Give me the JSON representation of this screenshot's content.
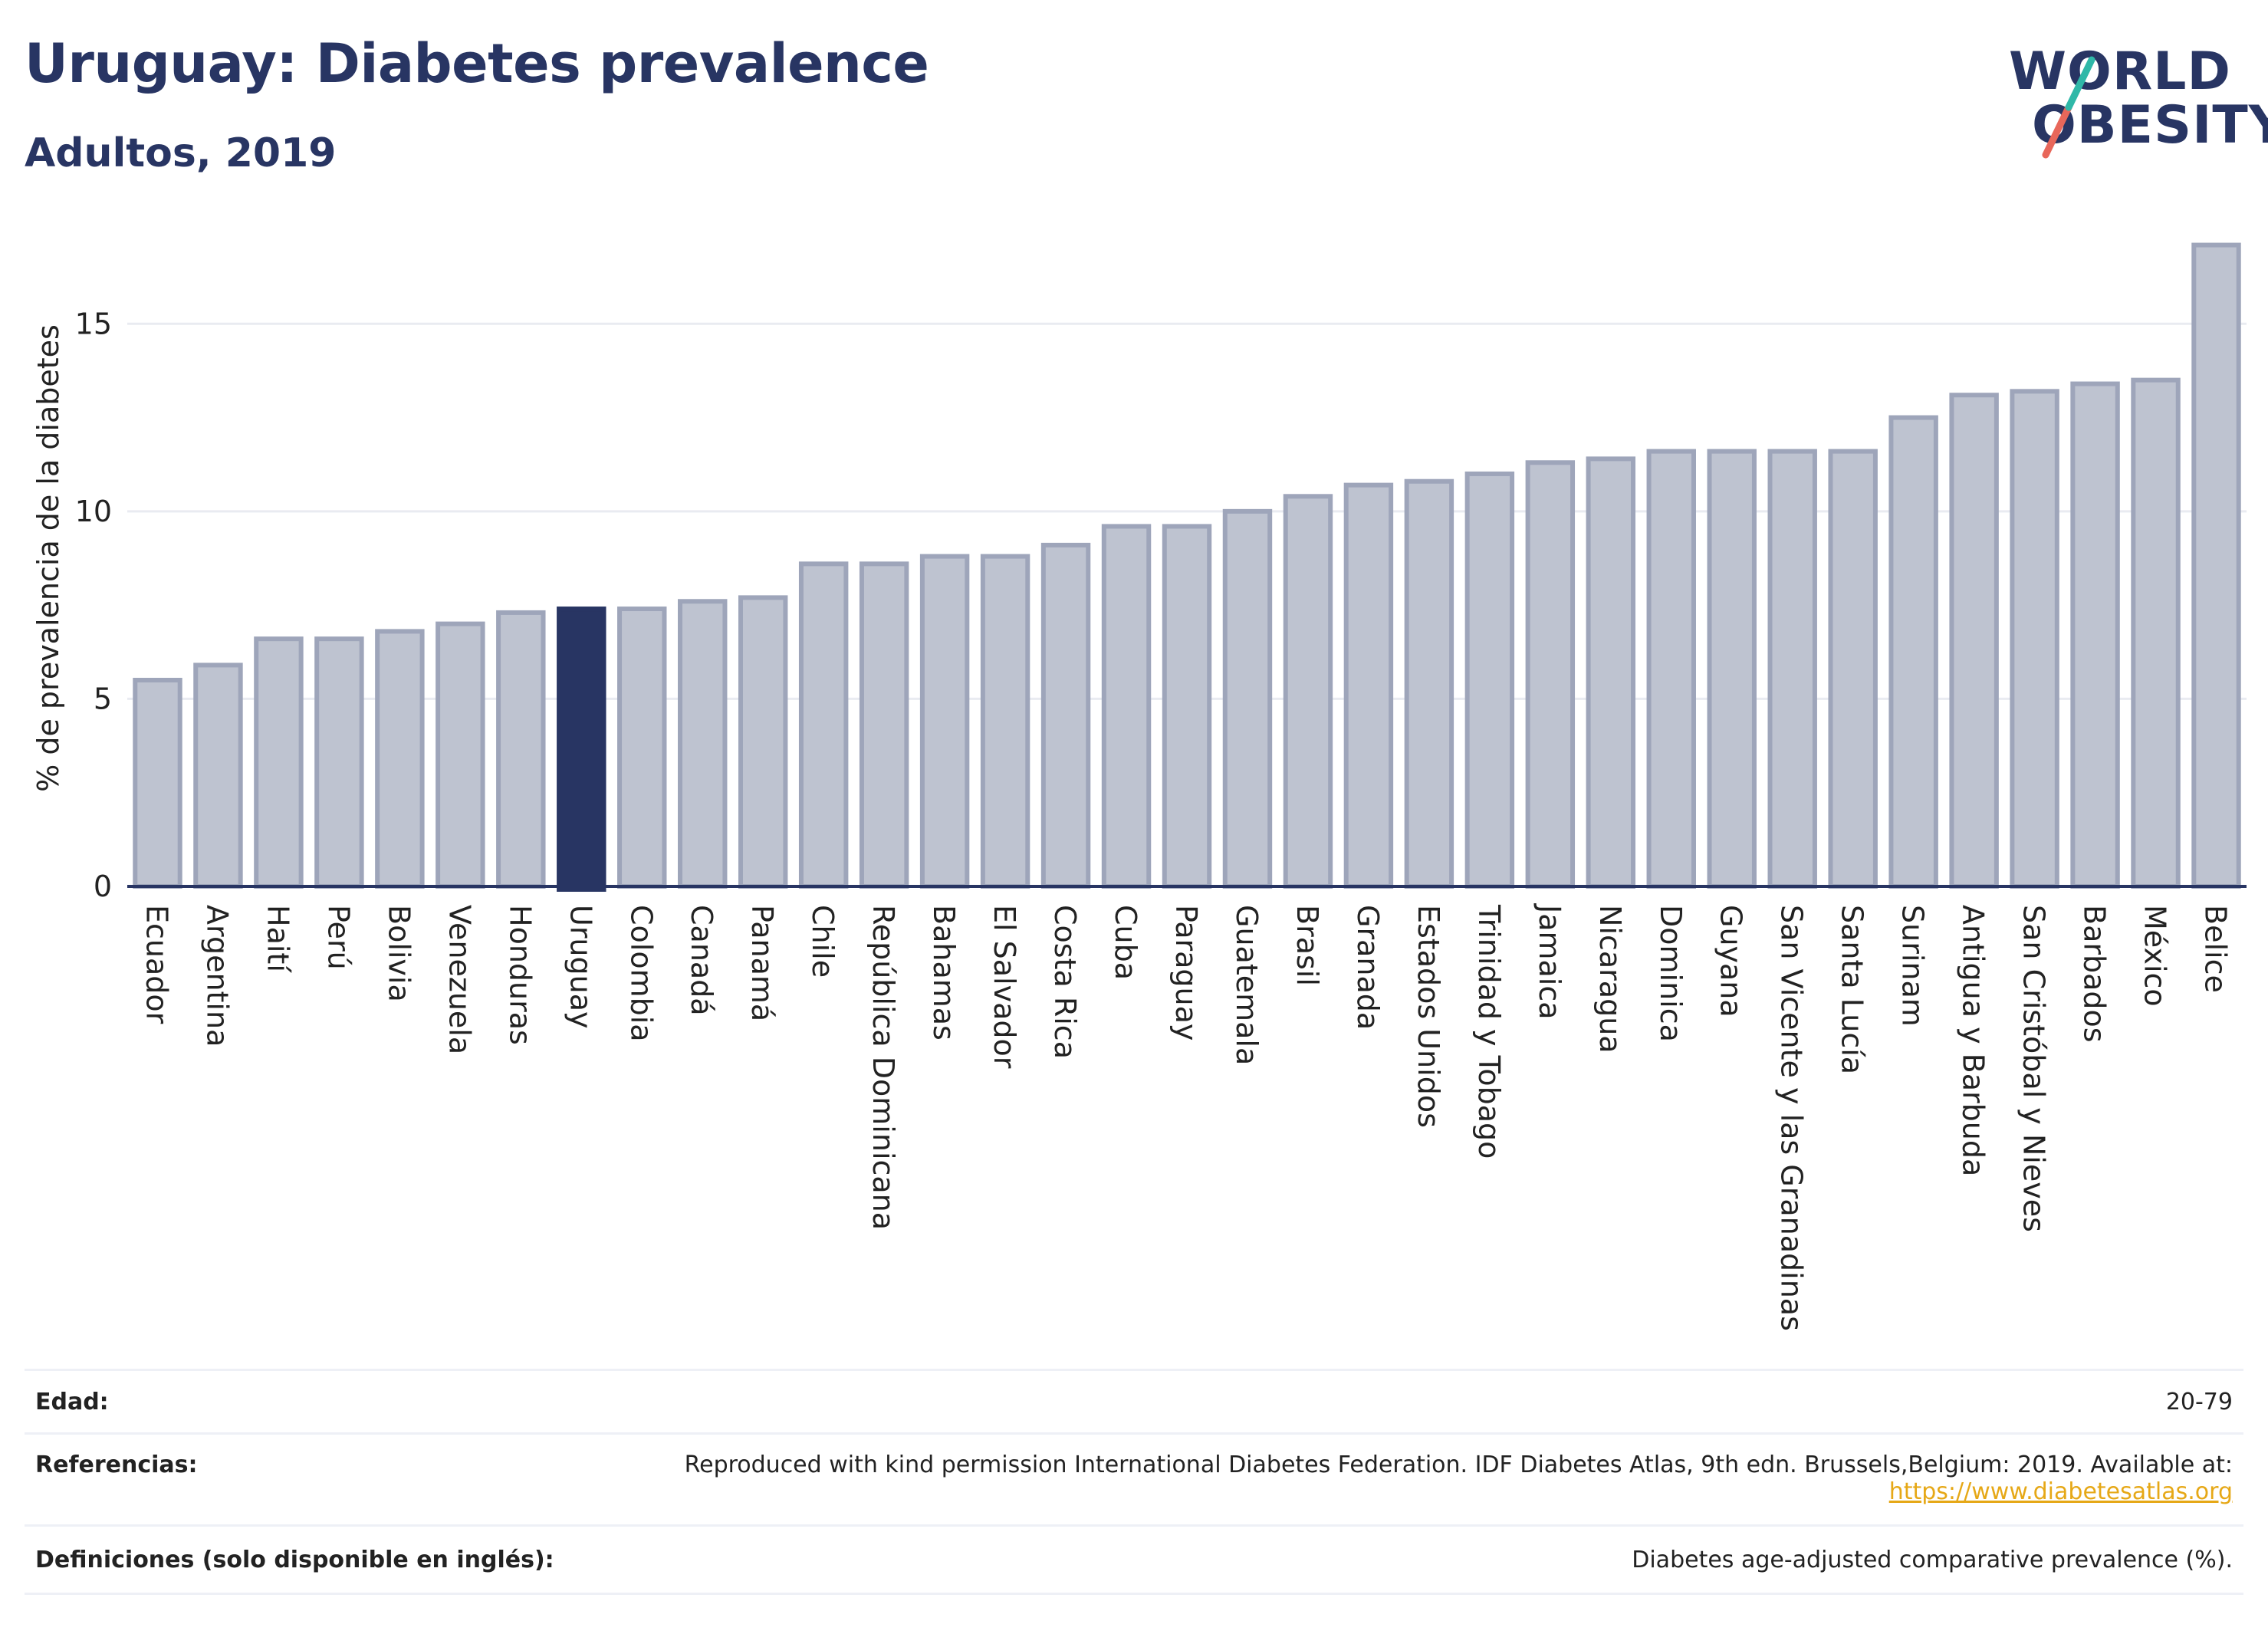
{
  "header": {
    "title": "Uruguay: Diabetes prevalence",
    "subtitle": "Adultos, 2019"
  },
  "logo": {
    "line1": "WORLD",
    "line2": "OBESITY",
    "brand_color": "#283563",
    "slash_color_top": "#2fb8a8",
    "slash_color_bottom": "#e8675a"
  },
  "chart_data": {
    "type": "bar",
    "ylabel": "% de prevalencia de la diabetes",
    "xlabel": "",
    "ylim": [
      0,
      17.5
    ],
    "yticks": [
      0,
      5,
      10,
      15
    ],
    "grid": true,
    "highlight": "Uruguay",
    "highlight_color": "#283563",
    "bar_color": "#bec3d0",
    "bar_edge_color": "#9ea5ba",
    "categories": [
      "Ecuador",
      "Argentina",
      "Haití",
      "Perú",
      "Bolivia",
      "Venezuela",
      "Honduras",
      "Uruguay",
      "Colombia",
      "Canadá",
      "Panamá",
      "Chile",
      "República Dominicana",
      "Bahamas",
      "El Salvador",
      "Costa Rica",
      "Cuba",
      "Paraguay",
      "Guatemala",
      "Brasil",
      "Granada",
      "Estados Unidos",
      "Trinidad y Tobago",
      "Jamaica",
      "Nicaragua",
      "Dominica",
      "Guyana",
      "San Vicente y las Granadinas",
      "Santa Lucía",
      "Surinam",
      "Antigua y Barbuda",
      "San Cristóbal y Nieves",
      "Barbados",
      "México",
      "Belice"
    ],
    "values": [
      5.5,
      5.9,
      6.6,
      6.6,
      6.8,
      7.0,
      7.3,
      7.4,
      7.4,
      7.6,
      7.7,
      8.6,
      8.6,
      8.8,
      8.8,
      9.1,
      9.6,
      9.6,
      10.0,
      10.4,
      10.7,
      10.8,
      11.0,
      11.3,
      11.4,
      11.6,
      11.6,
      11.6,
      11.6,
      12.5,
      13.1,
      13.2,
      13.4,
      13.5,
      17.1
    ]
  },
  "footer": {
    "edad_label": "Edad:",
    "edad_value": "20-79",
    "ref_label": "Referencias:",
    "ref_text": "Reproduced with kind permission International Diabetes Federation. IDF Diabetes Atlas, 9th edn. Brussels,Belgium: 2019. Available at:",
    "ref_link": "https://www.diabetesatlas.org",
    "def_label": "Definiciones (solo disponible en inglés):",
    "def_value": "Diabetes age-adjusted comparative prevalence (%)."
  }
}
